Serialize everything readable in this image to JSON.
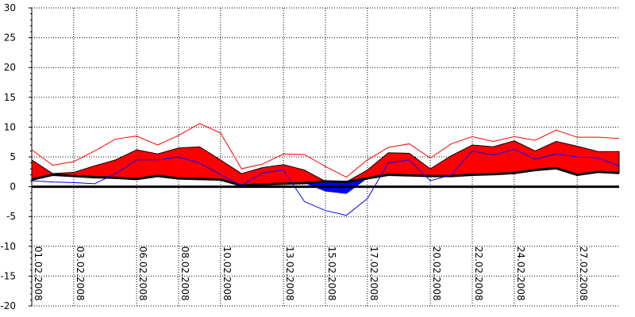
{
  "chart_data": {
    "type": "area",
    "title": "",
    "xlabel": "",
    "ylabel": "",
    "ylim": [
      -20,
      30
    ],
    "y_ticks": [
      30,
      25,
      20,
      15,
      10,
      5,
      0,
      -5,
      -10,
      -15,
      -20
    ],
    "grid": true,
    "x_range": [
      1,
      29
    ],
    "x_ticks": [
      {
        "x": 1,
        "label": "01.02.2008"
      },
      {
        "x": 3,
        "label": "03.02.2008"
      },
      {
        "x": 6,
        "label": "06.02.2008"
      },
      {
        "x": 8,
        "label": "08.02.2008"
      },
      {
        "x": 10,
        "label": "10.02.2008"
      },
      {
        "x": 13,
        "label": "13.02.2008"
      },
      {
        "x": 15,
        "label": "15.02.2008"
      },
      {
        "x": 17,
        "label": "17.02.2008"
      },
      {
        "x": 20,
        "label": "20.02.2008"
      },
      {
        "x": 22,
        "label": "22.02.2008"
      },
      {
        "x": 24,
        "label": "24.02.2008"
      },
      {
        "x": 27,
        "label": "27.02.2008"
      }
    ],
    "x": [
      1,
      2,
      3,
      4,
      5,
      6,
      7,
      8,
      9,
      10,
      11,
      12,
      13,
      14,
      15,
      16,
      17,
      18,
      19,
      20,
      21,
      22,
      23,
      24,
      25,
      26,
      27,
      28,
      29
    ],
    "series": [
      {
        "role": "area-upper",
        "color": "#ff0000",
        "values": [
          4.5,
          2.2,
          2.4,
          3.5,
          4.5,
          6.2,
          5.5,
          6.5,
          6.7,
          4.5,
          2.2,
          3.2,
          3.7,
          2.8,
          -0.8,
          -1.2,
          2.8,
          5.7,
          5.6,
          3.0,
          5.2,
          7.0,
          6.7,
          7.7,
          6.0,
          7.6,
          6.8,
          5.9,
          5.9
        ]
      },
      {
        "role": "area-lower",
        "color": "#000000",
        "values": [
          1.2,
          2.0,
          1.8,
          1.6,
          1.5,
          1.3,
          1.8,
          1.4,
          1.3,
          1.2,
          0.2,
          0.4,
          0.5,
          0.6,
          0.9,
          0.8,
          1.4,
          2.0,
          1.9,
          1.8,
          1.8,
          2.0,
          2.1,
          2.3,
          2.8,
          3.1,
          2.0,
          2.5,
          2.3
        ]
      },
      {
        "role": "line-max",
        "color": "#ff0000",
        "values": [
          6.2,
          3.6,
          4.2,
          6.0,
          8.0,
          8.5,
          7.0,
          8.6,
          10.6,
          9.0,
          3.0,
          3.8,
          5.5,
          5.4,
          3.4,
          1.6,
          4.5,
          6.6,
          7.2,
          4.8,
          7.2,
          8.4,
          7.6,
          8.4,
          7.8,
          9.5,
          8.3,
          8.3,
          8.1
        ]
      },
      {
        "role": "line-min",
        "color": "#0000ff",
        "values": [
          1.0,
          0.8,
          0.7,
          0.5,
          2.2,
          4.5,
          4.5,
          5.0,
          4.0,
          2.0,
          0.2,
          2.3,
          2.8,
          -2.5,
          -4.0,
          -4.8,
          -2.0,
          4.0,
          4.5,
          1.0,
          2.0,
          6.0,
          5.3,
          6.3,
          4.6,
          5.5,
          5.0,
          4.8,
          3.5
        ]
      }
    ],
    "colors": {
      "positive_fill": "#ff0000",
      "negative_fill": "#0000ff",
      "zero_line": "#000000"
    }
  }
}
